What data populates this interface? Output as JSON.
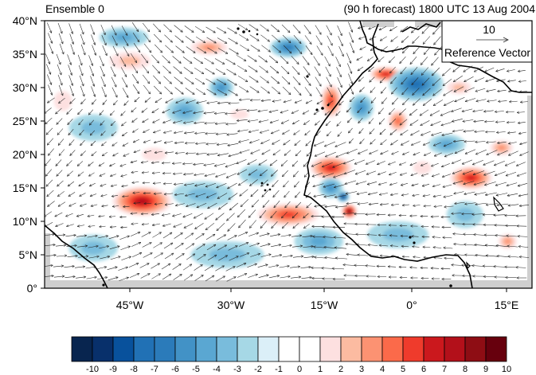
{
  "plot": {
    "title_left": "Ensemble 0",
    "title_right": "(90 h forecast) 1800 UTC 13 Aug 2004"
  },
  "axes": {
    "lat_labels": [
      "40°N",
      "35°N",
      "30°N",
      "25°N",
      "20°N",
      "15°N",
      "10°N",
      "5°N",
      "0°"
    ],
    "lon_labels": [
      "45°W",
      "30°W",
      "15°W",
      "0°",
      "15°E"
    ]
  },
  "reference_vector": {
    "magnitude": "10",
    "label": "Reference Vector"
  },
  "colorbar": {
    "labels": [
      "-10",
      "-9",
      "-8",
      "-7",
      "-6",
      "-5",
      "-4",
      "-3",
      "-2",
      "-1",
      "0",
      "1",
      "2",
      "3",
      "4",
      "5",
      "6",
      "7",
      "8",
      "9",
      "10"
    ],
    "colors": [
      "#08254f",
      "#08306b",
      "#08519c",
      "#2171b5",
      "#2b7bba",
      "#4292c6",
      "#5aa7d2",
      "#79bcdc",
      "#a6d8e6",
      "#dbeff8",
      "#ffffff",
      "#ffffff",
      "#fde0e0",
      "#fcbba1",
      "#fc9272",
      "#fb6a4a",
      "#ef3b2c",
      "#cb181d",
      "#b3101a",
      "#8e0d14",
      "#67000d"
    ]
  },
  "field": {
    "blobs": [
      {
        "lon": -44,
        "lat": 13,
        "rx": 5.5,
        "ry": 2.5,
        "v": 8
      },
      {
        "lon": -46,
        "lat": 34,
        "rx": 5,
        "ry": 2,
        "v": 3
      },
      {
        "lon": -33,
        "lat": 36,
        "rx": 4,
        "ry": 1.5,
        "v": 4
      },
      {
        "lon": -57,
        "lat": 28,
        "rx": 3,
        "ry": 3,
        "v": 2
      },
      {
        "lon": -20,
        "lat": 11,
        "rx": 6,
        "ry": 2,
        "v": 6
      },
      {
        "lon": -13,
        "lat": 18,
        "rx": 4,
        "ry": 2,
        "v": 7
      },
      {
        "lon": -13,
        "lat": 28,
        "rx": 2,
        "ry": 3,
        "v": 6
      },
      {
        "lon": -10,
        "lat": 11.5,
        "rx": 1.4,
        "ry": 1.2,
        "v": 10
      },
      {
        "lon": -4,
        "lat": 32,
        "rx": 3,
        "ry": 1.3,
        "v": 7
      },
      {
        "lon": -2,
        "lat": 25,
        "rx": 2,
        "ry": 2,
        "v": 5
      },
      {
        "lon": 10,
        "lat": 16.5,
        "rx": 4,
        "ry": 2,
        "v": 7
      },
      {
        "lon": 15,
        "lat": 21,
        "rx": 2.5,
        "ry": 1.5,
        "v": 4
      },
      {
        "lon": 8,
        "lat": 30,
        "rx": 3,
        "ry": 1.5,
        "v": 3
      },
      {
        "lon": 16,
        "lat": 7,
        "rx": 2,
        "ry": 1.5,
        "v": 4
      },
      {
        "lon": -28,
        "lat": 26,
        "rx": 3,
        "ry": 1.5,
        "v": 2
      },
      {
        "lon": -42,
        "lat": 20,
        "rx": 4,
        "ry": 2,
        "v": 2
      },
      {
        "lon": 2,
        "lat": 18,
        "rx": 3,
        "ry": 2,
        "v": 2
      },
      {
        "lon": -20,
        "lat": 36,
        "rx": 3,
        "ry": 1.5,
        "v": -5
      },
      {
        "lon": 1,
        "lat": 30.5,
        "rx": 4.5,
        "ry": 2.5,
        "v": -6
      },
      {
        "lon": -8,
        "lat": 27,
        "rx": 2,
        "ry": 2,
        "v": -4
      },
      {
        "lon": -37,
        "lat": 26.5,
        "rx": 3,
        "ry": 2,
        "v": -3
      },
      {
        "lon": -31,
        "lat": 30,
        "rx": 2,
        "ry": 1.5,
        "v": -4
      },
      {
        "lon": -13,
        "lat": 15,
        "rx": 2,
        "ry": 1.5,
        "v": -4
      },
      {
        "lon": -11,
        "lat": 13.7,
        "rx": 1,
        "ry": 0.8,
        "v": -9
      },
      {
        "lon": -47,
        "lat": 37.5,
        "rx": 4,
        "ry": 1.5,
        "v": -3
      },
      {
        "lon": -52,
        "lat": 24,
        "rx": 4,
        "ry": 2,
        "v": -2
      },
      {
        "lon": -34,
        "lat": 14,
        "rx": 5,
        "ry": 2,
        "v": -2
      },
      {
        "lon": -30,
        "lat": 5,
        "rx": 6,
        "ry": 2,
        "v": -2
      },
      {
        "lon": -52,
        "lat": 6,
        "rx": 4,
        "ry": 2,
        "v": -2
      },
      {
        "lon": 6,
        "lat": 21.5,
        "rx": 3,
        "ry": 1.5,
        "v": -3
      },
      {
        "lon": -25,
        "lat": 17,
        "rx": 3,
        "ry": 1.5,
        "v": -2
      },
      {
        "lon": -2,
        "lat": 8,
        "rx": 5,
        "ry": 2,
        "v": -2
      },
      {
        "lon": 9,
        "lat": 11,
        "rx": 3,
        "ry": 2,
        "v": -2
      },
      {
        "lon": -15,
        "lat": 7,
        "rx": 4,
        "ry": 2,
        "v": -3
      }
    ]
  }
}
